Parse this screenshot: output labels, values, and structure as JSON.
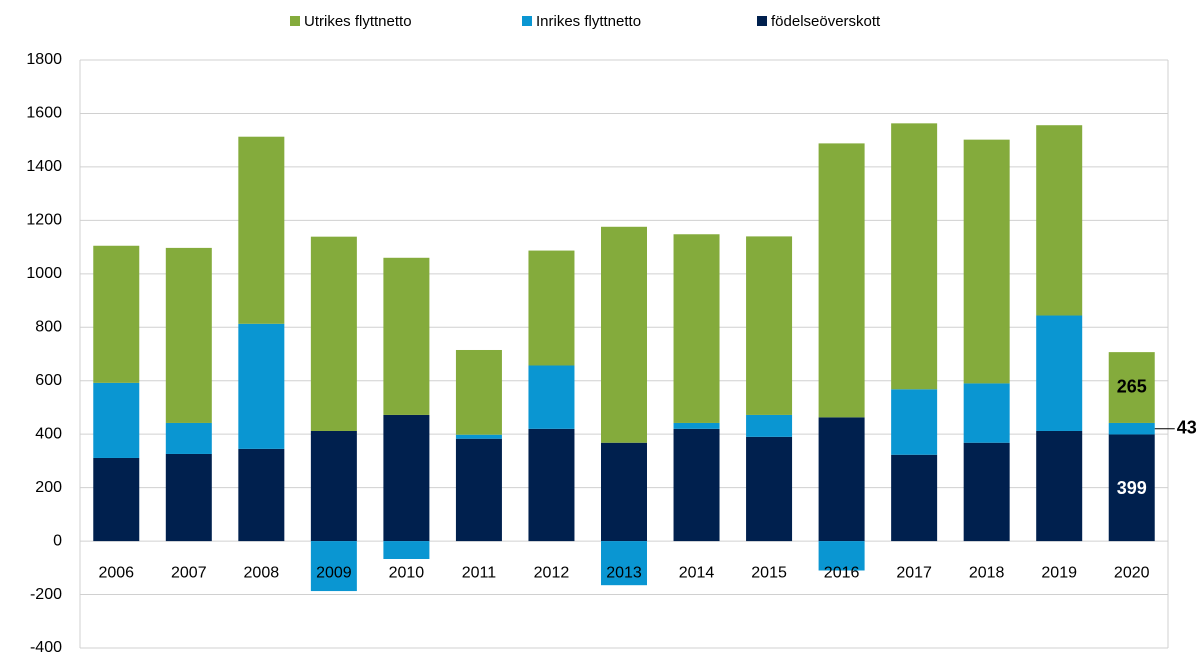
{
  "chart_data": {
    "type": "stacked-bar",
    "categories": [
      "2006",
      "2007",
      "2008",
      "2009",
      "2010",
      "2011",
      "2012",
      "2013",
      "2014",
      "2015",
      "2016",
      "2017",
      "2018",
      "2019",
      "2020"
    ],
    "series": [
      {
        "name": "födelseöverskott",
        "color": "#00204e",
        "values": [
          311,
          326,
          345,
          412,
          472,
          383,
          420,
          368,
          420,
          390,
          463,
          323,
          368,
          412,
          399
        ],
        "value_labels": [
          null,
          null,
          null,
          null,
          null,
          null,
          null,
          null,
          null,
          null,
          null,
          null,
          null,
          null,
          "399"
        ]
      },
      {
        "name": "Inrikes flyttnetto",
        "color": "#0a96d2",
        "values": [
          281,
          116,
          468,
          -187,
          -67,
          15,
          237,
          -165,
          22,
          82,
          -110,
          245,
          222,
          432,
          43
        ],
        "value_labels": [
          null,
          null,
          null,
          null,
          null,
          null,
          null,
          null,
          null,
          null,
          null,
          null,
          null,
          null,
          "43"
        ]
      },
      {
        "name": "Utrikes flyttnetto",
        "color": "#84ab3c",
        "values": [
          513,
          655,
          700,
          727,
          588,
          317,
          430,
          808,
          706,
          668,
          1025,
          995,
          912,
          712,
          265
        ],
        "value_labels": [
          null,
          null,
          null,
          null,
          null,
          null,
          null,
          null,
          null,
          null,
          null,
          null,
          null,
          null,
          "265"
        ]
      }
    ],
    "ylim": [
      -400,
      1800
    ],
    "yticks": [
      -400,
      -200,
      0,
      200,
      400,
      600,
      800,
      1000,
      1200,
      1400,
      1600,
      1800
    ],
    "grid": true
  }
}
